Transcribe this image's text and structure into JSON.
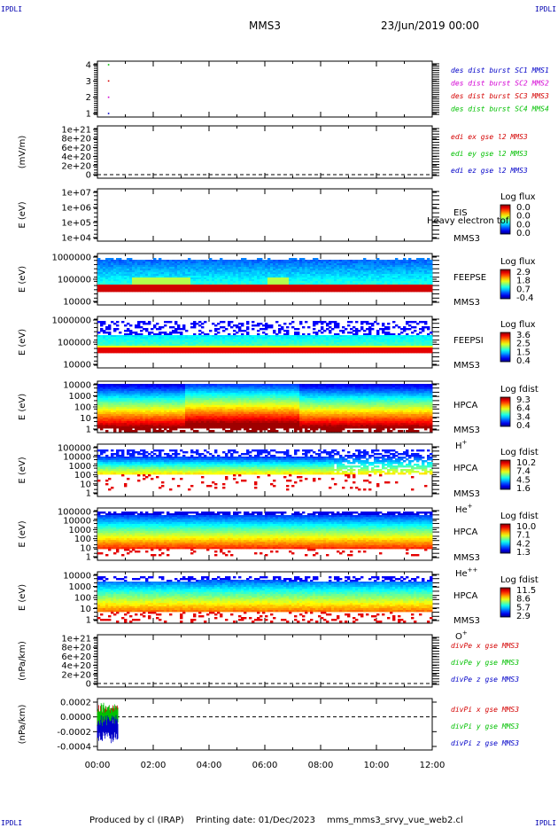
{
  "header": {
    "corner_tl": "IPDLI",
    "corner_tr": "IPDLI",
    "corner_bl": "IPDLI",
    "corner_br": "IPDLI",
    "title": "MMS3",
    "date": "23/Jun/2019 00:00"
  },
  "footer": {
    "produced_by": "Produced by cl (IRAP)",
    "printing_date": "Printing date: 01/Dec/2023",
    "filename": "mms_mms3_srvy_vue_web2.cl"
  },
  "time_axis": [
    "00:00",
    "02:00",
    "04:00",
    "06:00",
    "08:00",
    "10:00",
    "12:00"
  ],
  "colors": {
    "red": "#d40000",
    "magenta": "#d400d4",
    "green": "#00c000",
    "blue": "#0000c8"
  },
  "chart_data": [
    {
      "type": "scatter",
      "panel": "des-dist-burst",
      "ylabel": "",
      "yticks": [
        "1",
        "2",
        "3",
        "4"
      ],
      "legend": [
        {
          "text": "des dist burst SC1 MMS1",
          "color": "#0000c8"
        },
        {
          "text": "des dist burst SC2 MMS2",
          "color": "#d400d4"
        },
        {
          "text": "des dist burst SC3 MMS3",
          "color": "#d40000"
        },
        {
          "text": "des dist burst SC4 MMS4",
          "color": "#00c000"
        }
      ],
      "series": [
        {
          "name": "des dist burst SC1 MMS1",
          "x": [
            "00:24"
          ],
          "y": [
            1
          ]
        },
        {
          "name": "des dist burst SC2 MMS2",
          "x": [
            "00:24"
          ],
          "y": [
            2
          ]
        },
        {
          "name": "des dist burst SC3 MMS3",
          "x": [
            "00:24"
          ],
          "y": [
            3
          ]
        },
        {
          "name": "des dist burst SC4 MMS4",
          "x": [
            "00:24"
          ],
          "y": [
            4
          ]
        }
      ]
    },
    {
      "type": "line",
      "panel": "edi-e",
      "ylabel": "(mV/m)",
      "yticks": [
        "0",
        "2e+20",
        "4e+20",
        "6e+20",
        "8e+20",
        "1e+21"
      ],
      "legend": [
        {
          "text": "edi ex gse l2 MMS3",
          "color": "#d40000"
        },
        {
          "text": "edi ey gse l2 MMS3",
          "color": "#00c000"
        },
        {
          "text": "edi ez gse l2 MMS3",
          "color": "#0000c8"
        }
      ],
      "reference_line": 0
    },
    {
      "type": "heatmap",
      "panel": "eis",
      "ylabel": "E (eV)",
      "yticks": [
        "1e+04",
        "1e+05",
        "1e+06",
        "1e+07"
      ],
      "instrument": "EIS",
      "spacecraft": "MMS3",
      "species": "Heavy electron tof",
      "colorbar_title": "Log flux",
      "colorbar_ticks": [
        "0.0",
        "0.0",
        "0.0",
        "0.0"
      ]
    },
    {
      "type": "heatmap",
      "panel": "feepse",
      "ylabel": "E (eV)",
      "yticks": [
        "10000",
        "100000",
        "1000000"
      ],
      "instrument": "FEEPSE",
      "spacecraft": "MMS3",
      "colorbar_title": "Log flux",
      "colorbar_ticks": [
        "2.9",
        "1.8",
        "0.7",
        "-0.4"
      ]
    },
    {
      "type": "heatmap",
      "panel": "feepsi",
      "ylabel": "E (eV)",
      "yticks": [
        "10000",
        "100000",
        "1000000"
      ],
      "instrument": "FEEPSI",
      "spacecraft": "MMS3",
      "colorbar_title": "Log flux",
      "colorbar_ticks": [
        "3.6",
        "2.5",
        "1.5",
        "0.4"
      ]
    },
    {
      "type": "heatmap",
      "panel": "hpca-h",
      "ylabel": "E (eV)",
      "yticks": [
        "1",
        "10",
        "100",
        "1000",
        "10000"
      ],
      "instrument": "HPCA",
      "spacecraft": "MMS3",
      "species_base": "H",
      "species_sup": "+",
      "colorbar_title": "Log fdist",
      "colorbar_ticks": [
        "9.3",
        "6.4",
        "3.4",
        "0.4"
      ]
    },
    {
      "type": "heatmap",
      "panel": "hpca-he",
      "ylabel": "E (eV)",
      "yticks": [
        "1",
        "10",
        "100",
        "1000",
        "10000",
        "100000"
      ],
      "instrument": "HPCA",
      "spacecraft": "MMS3",
      "species_base": "He",
      "species_sup": "+",
      "colorbar_title": "Log fdist",
      "colorbar_ticks": [
        "10.2",
        "7.4",
        "4.5",
        "1.6"
      ]
    },
    {
      "type": "heatmap",
      "panel": "hpca-hepp",
      "ylabel": "E (eV)",
      "yticks": [
        "1",
        "10",
        "100",
        "1000",
        "10000",
        "100000"
      ],
      "instrument": "HPCA",
      "spacecraft": "MMS3",
      "species_base": "He",
      "species_sup": "++",
      "colorbar_title": "Log fdist",
      "colorbar_ticks": [
        "10.0",
        "7.1",
        "4.2",
        "1.3"
      ]
    },
    {
      "type": "heatmap",
      "panel": "hpca-o",
      "ylabel": "E (eV)",
      "yticks": [
        "1",
        "10",
        "100",
        "1000",
        "10000"
      ],
      "instrument": "HPCA",
      "spacecraft": "MMS3",
      "species_base": "O",
      "species_sup": "+",
      "colorbar_title": "Log fdist",
      "colorbar_ticks": [
        "11.5",
        "8.6",
        "5.7",
        "2.9"
      ]
    },
    {
      "type": "line",
      "panel": "divpe",
      "ylabel": "(nPa/km)",
      "yticks": [
        "0",
        "2e+20",
        "4e+20",
        "6e+20",
        "8e+20",
        "1e+21"
      ],
      "legend": [
        {
          "text": "divPe x gse MMS3",
          "color": "#d40000"
        },
        {
          "text": "divPe y gse MMS3",
          "color": "#00c000"
        },
        {
          "text": "divPe z gse MMS3",
          "color": "#0000c8"
        }
      ],
      "reference_line": 0
    },
    {
      "type": "line",
      "panel": "divpi",
      "ylabel": "(nPa/km)",
      "yticks": [
        "-0.0004",
        "-0.0002",
        "0.0000",
        "0.0002"
      ],
      "ylim": [
        -0.0005,
        0.0003
      ],
      "legend": [
        {
          "text": "divPi x gse MMS3",
          "color": "#d40000"
        },
        {
          "text": "divPi y gse MMS3",
          "color": "#00c000"
        },
        {
          "text": "divPi z gse MMS3",
          "color": "#0000c8"
        }
      ],
      "reference_line": 0,
      "data_span": [
        "00:00",
        "00:45"
      ],
      "series": [
        {
          "name": "divPi x gse MMS3",
          "range": [
            -0.0001,
            0.0002
          ]
        },
        {
          "name": "divPi y gse MMS3",
          "range": [
            -0.0002,
            0.00025
          ]
        },
        {
          "name": "divPi z gse MMS3",
          "range": [
            -0.0004,
            5e-05
          ]
        }
      ]
    }
  ]
}
